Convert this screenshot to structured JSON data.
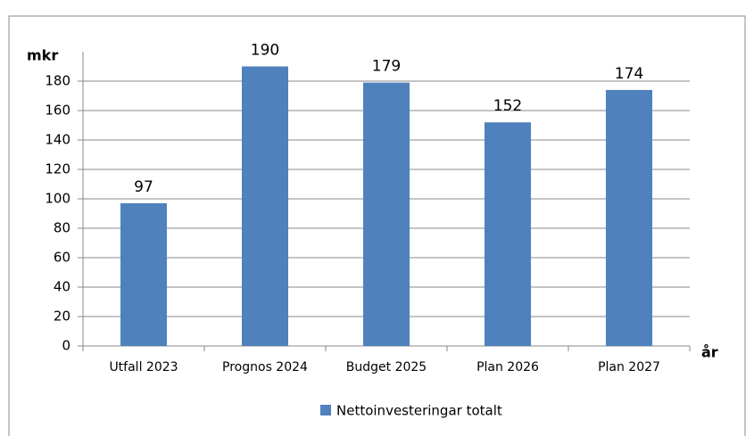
{
  "chart_data": {
    "type": "bar",
    "y_label": "mkr",
    "x_label": "år",
    "categories": [
      "Utfall 2023",
      "Prognos 2024",
      "Budget 2025",
      "Plan 2026",
      "Plan 2027"
    ],
    "series": [
      {
        "name": "Nettoinvesteringar totalt",
        "color": "#4f81bd",
        "values": [
          97,
          190,
          179,
          152,
          174
        ]
      }
    ],
    "ylim": [
      0,
      200
    ],
    "yticks": [
      0,
      20,
      40,
      60,
      80,
      100,
      120,
      140,
      160,
      180
    ],
    "grid": true,
    "legend": "bottom"
  }
}
